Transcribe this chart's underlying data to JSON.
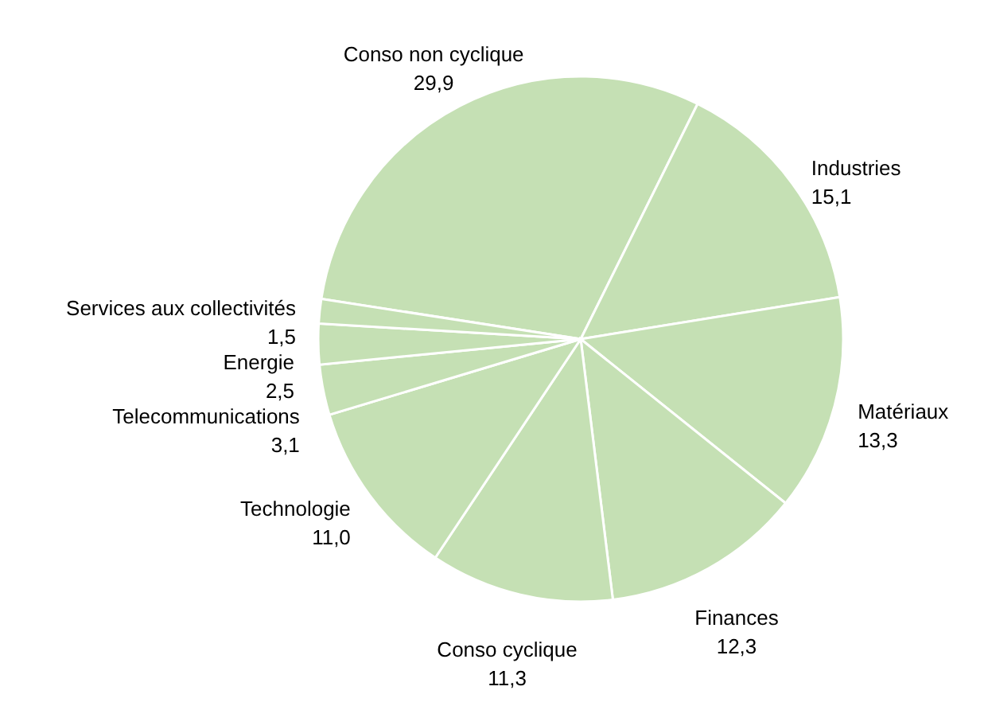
{
  "chart_data": {
    "type": "pie",
    "categories": [
      "Conso non cyclique",
      "Industries",
      "Matériaux",
      "Finances",
      "Conso cyclique",
      "Technologie",
      "Telecommunications",
      "Energie",
      "Services aux collectivités"
    ],
    "values": [
      29.9,
      15.1,
      13.3,
      12.3,
      11.3,
      11.0,
      3.1,
      2.5,
      1.5
    ],
    "value_labels": [
      "29,9",
      "15,1",
      "13,3",
      "12,3",
      "11,3",
      "11,0",
      "3,1",
      "2,5",
      "1,5"
    ],
    "colors": [
      "#c5e0b4",
      "#c5e0b4",
      "#c5e0b4",
      "#c5e0b4",
      "#c5e0b4",
      "#c5e0b4",
      "#c5e0b4",
      "#c5e0b4",
      "#c5e0b4"
    ]
  }
}
